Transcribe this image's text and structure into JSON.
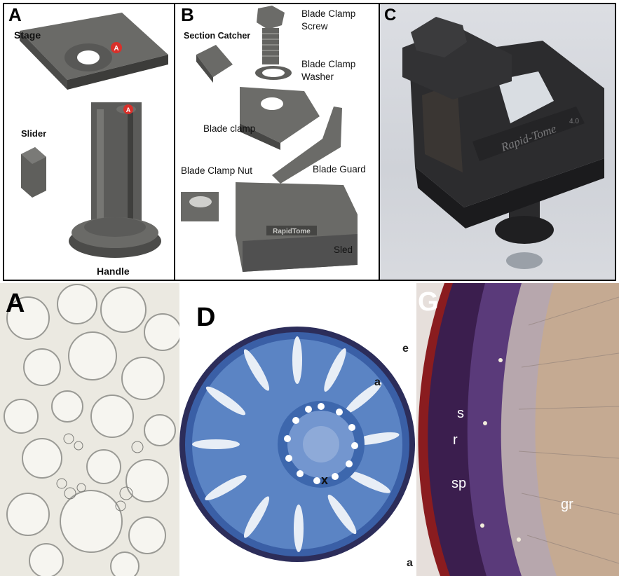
{
  "panels": {
    "a_top": {
      "letter": "A",
      "labels": {
        "stage": "Stage",
        "slider": "Slider",
        "handle": "Handle"
      },
      "pin_letter": "A"
    },
    "b_top": {
      "letter": "B",
      "labels": {
        "blade_clamp_screw_1": "Blade Clamp",
        "blade_clamp_screw_2": "Screw",
        "section_catcher": "Section Catcher",
        "blade_clamp_washer_1": "Blade Clamp",
        "blade_clamp_washer_2": "Washer",
        "blade_clamp": "Blade clamp",
        "blade_clamp_nut": "Blade Clamp Nut",
        "blade_guard": "Blade Guard",
        "sled": "Sled",
        "engraving": "RapidTome"
      }
    },
    "c_top": {
      "letter": "C",
      "engraving": "Rapid-Tome",
      "version": "4.0"
    },
    "a_bottom": {
      "letter": "A"
    },
    "d_bottom": {
      "letter": "D",
      "labels": {
        "e": "e",
        "a": "a",
        "x": "x",
        "a2": "a"
      }
    },
    "g_bottom": {
      "letter": "G",
      "labels": {
        "s": "s",
        "r": "r",
        "sp": "sp",
        "gr": "gr"
      }
    }
  },
  "colors": {
    "frame": "#000000",
    "cad_gray": "#5b5b59",
    "cad_dark": "#3f3f3d",
    "pin_red": "#d9302a",
    "photo_bg": "#d7d9de",
    "micro_a_bg": "#e9e7df",
    "stain_blue": "#2f5ea8",
    "stain_purple": "#4b2a66",
    "wood_tan": "#b9a089"
  }
}
